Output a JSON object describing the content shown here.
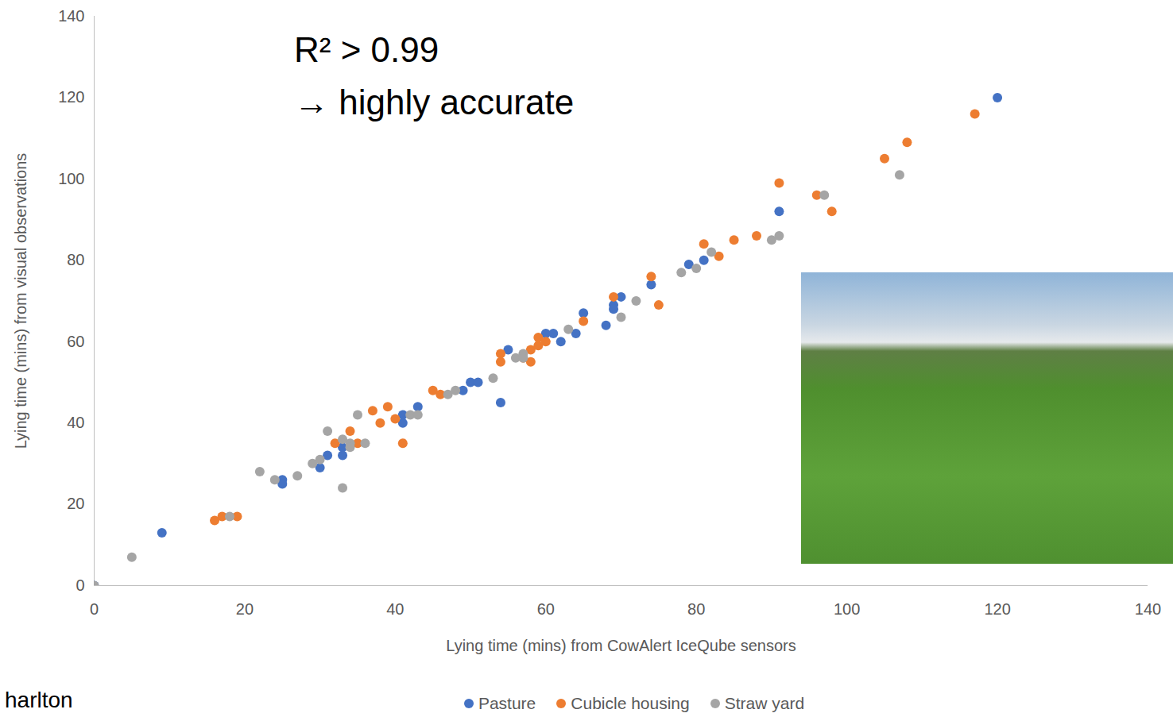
{
  "chart_data": {
    "type": "scatter",
    "annotations": [
      "R² > 0.99",
      "→ highly accurate"
    ],
    "x_label": "Lying time (mins) from CowAlert IceQube sensors",
    "y_label": "Lying time (mins) from visual observations",
    "caption": "harlton",
    "xlim": [
      0,
      140
    ],
    "ylim": [
      0,
      140
    ],
    "xticks": [
      0,
      20,
      40,
      60,
      80,
      100,
      120,
      140
    ],
    "yticks": [
      0,
      20,
      40,
      60,
      80,
      100,
      120,
      140
    ],
    "grid": false,
    "legend": "bottom",
    "series": [
      {
        "name": "Pasture",
        "color": "#4472c4",
        "marker": "circle",
        "x": [
          0,
          9,
          25,
          25,
          30,
          31,
          33,
          33,
          41,
          41,
          43,
          49,
          50,
          51,
          54,
          55,
          60,
          61,
          62,
          64,
          65,
          68,
          69,
          69,
          70,
          74,
          79,
          81,
          91,
          120
        ],
        "values": [
          0,
          13,
          26,
          25,
          29,
          32,
          34,
          32,
          42,
          40,
          44,
          48,
          50,
          50,
          45,
          58,
          62,
          62,
          60,
          62,
          67,
          64,
          69,
          68,
          71,
          74,
          79,
          80,
          92,
          120
        ]
      },
      {
        "name": "Cubicle housing",
        "color": "#ed7d31",
        "marker": "circle",
        "x": [
          16,
          17,
          19,
          32,
          34,
          35,
          37,
          38,
          39,
          40,
          41,
          45,
          46,
          54,
          54,
          57,
          58,
          58,
          59,
          59,
          60,
          65,
          69,
          74,
          75,
          81,
          83,
          85,
          88,
          91,
          96,
          98,
          105,
          108,
          117
        ],
        "values": [
          16,
          17,
          17,
          35,
          38,
          35,
          43,
          40,
          44,
          41,
          35,
          48,
          47,
          57,
          55,
          56,
          58,
          55,
          61,
          59,
          60,
          65,
          71,
          76,
          69,
          84,
          81,
          85,
          86,
          99,
          96,
          92,
          105,
          109,
          116
        ]
      },
      {
        "name": "Straw yard",
        "color": "#a5a5a5",
        "marker": "circle",
        "x": [
          0,
          5,
          18,
          22,
          24,
          27,
          29,
          30,
          31,
          33,
          33,
          34,
          34,
          35,
          36,
          42,
          43,
          47,
          48,
          53,
          56,
          57,
          57,
          63,
          70,
          72,
          78,
          80,
          82,
          90,
          91,
          97,
          107
        ],
        "values": [
          0,
          7,
          17,
          28,
          26,
          27,
          30,
          31,
          38,
          36,
          24,
          35,
          34,
          42,
          35,
          42,
          42,
          47,
          48,
          51,
          56,
          57,
          56,
          63,
          66,
          70,
          77,
          78,
          82,
          85,
          86,
          96,
          101
        ]
      }
    ]
  }
}
